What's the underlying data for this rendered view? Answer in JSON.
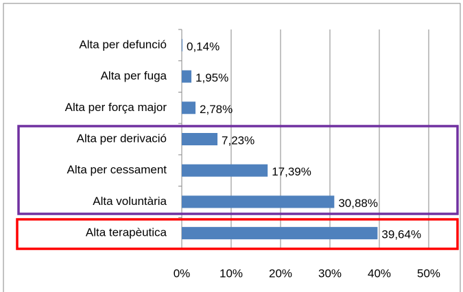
{
  "chart_data": {
    "type": "hbar",
    "categories": [
      "Alta per defunció",
      "Alta per fuga",
      "Alta per força major",
      "Alta per derivació",
      "Alta per cessament",
      "Alta voluntària",
      "Alta terapèutica"
    ],
    "values": [
      0.14,
      1.95,
      2.78,
      7.23,
      17.39,
      30.88,
      39.64
    ],
    "value_labels": [
      "0,14%",
      "1,95%",
      "2,78%",
      "7,23%",
      "17,39%",
      "30,88%",
      "39,64%"
    ],
    "color": "#4f81bd",
    "xlim": [
      0,
      50
    ],
    "xticks": [
      {
        "value": 0,
        "label": "0%"
      },
      {
        "value": 10,
        "label": "10%"
      },
      {
        "value": 20,
        "label": "20%"
      },
      {
        "value": 30,
        "label": "30%"
      },
      {
        "value": 40,
        "label": "40%"
      },
      {
        "value": 50,
        "label": "50%"
      }
    ],
    "grid": true
  }
}
